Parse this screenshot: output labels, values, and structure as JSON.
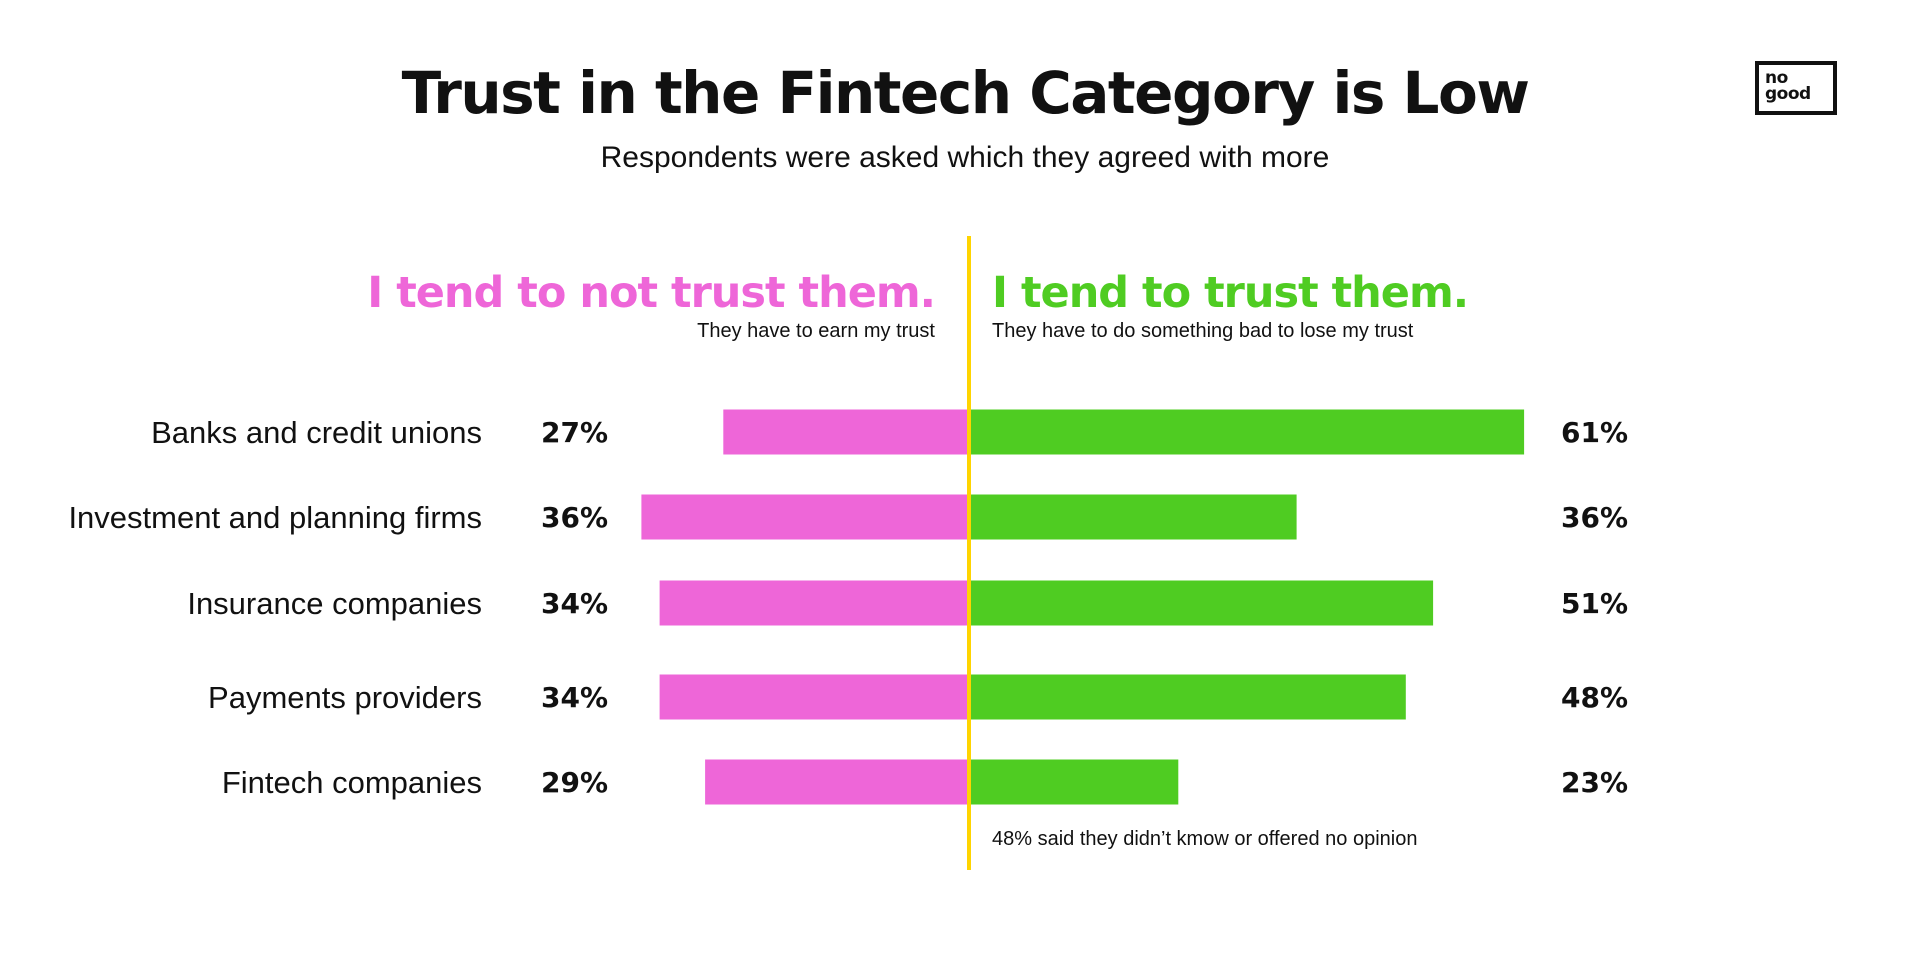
{
  "title": "Trust in the Fintech Category is Low",
  "subtitle": "Respondents were asked which they agreed with more",
  "logo": {
    "line1": "no",
    "line2": "good"
  },
  "colors": {
    "negative": "#ee66d8",
    "positive": "#4fcc22",
    "divider": "#ffd400"
  },
  "chart_data": {
    "type": "bar",
    "orientation": "diverging-horizontal",
    "categories": [
      "Banks and credit unions",
      "Investment and planning firms",
      "Insurance companies",
      "Payments providers",
      "Fintech companies"
    ],
    "series": [
      {
        "name": "I tend to not trust them.",
        "values": [
          27,
          36,
          34,
          34,
          29
        ],
        "labels": [
          "27%",
          "36%",
          "34%",
          "34%",
          "29%"
        ]
      },
      {
        "name": "I tend to trust them.",
        "values": [
          61,
          36,
          51,
          48,
          23
        ],
        "labels": [
          "61%",
          "36%",
          "51%",
          "48%",
          "23%"
        ]
      }
    ],
    "series_subtitles": [
      "They have to earn my trust",
      "They have to do something bad to lose my trust"
    ],
    "annotation": "48% said they didn’t kmow or offered no opinion"
  }
}
